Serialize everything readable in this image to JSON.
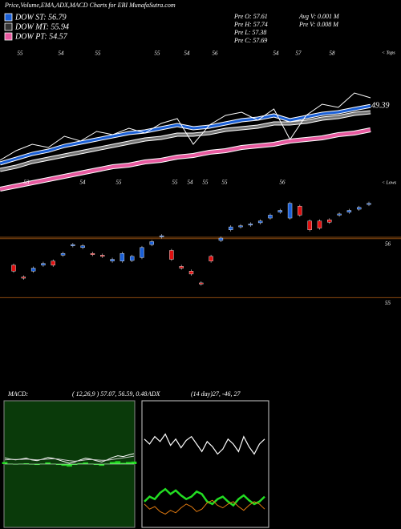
{
  "header": {
    "title": "Price,Volume,EMA,ADX,MACD Charts for EBI MunafaSutra.com"
  },
  "legend": [
    {
      "label": "DOW ST: 56.79",
      "color": "#1a5fd6"
    },
    {
      "label": "DOW MT: 55.94",
      "color": "#333333"
    },
    {
      "label": "DOW PT: 54.57",
      "color": "#e85aa0"
    }
  ],
  "info": [
    "Pre  O: 57.61",
    "Pre  H: 57.74",
    "Pre  L: 57.38",
    "Pre  C: 57.69",
    "Avg  V: 0.001  M",
    "Pre  V: 0.008  M"
  ],
  "chart_data": [
    {
      "type": "line",
      "tops_label": "< Tops",
      "tops": [
        "55",
        "54",
        "55",
        "55",
        "54",
        "56",
        "54",
        "57",
        "58"
      ],
      "lows_label": "< Lows",
      "lows": [
        "53",
        "54",
        "55",
        "55",
        "54",
        "55",
        "55",
        "56"
      ],
      "last_label": "49.39",
      "ylim": [
        44,
        53
      ],
      "series": [
        {
          "color": "#e85aa0",
          "width": 4,
          "values": [
            44.2,
            44.4,
            44.6,
            44.8,
            45.0,
            45.2,
            45.4,
            45.6,
            45.7,
            45.9,
            46.0,
            46.2,
            46.3,
            46.5,
            46.6,
            46.8,
            46.9,
            47.0,
            47.2,
            47.3,
            47.4,
            47.6,
            47.7,
            47.9
          ]
        },
        {
          "color": "#777777",
          "width": 3,
          "values": [
            45.4,
            45.6,
            45.9,
            46.1,
            46.3,
            46.5,
            46.7,
            46.9,
            47.1,
            47.3,
            47.4,
            47.6,
            47.6,
            47.7,
            47.9,
            48.0,
            48.1,
            48.3,
            48.3,
            48.4,
            48.6,
            48.7,
            48.9,
            49.0
          ]
        },
        {
          "color": "#1a5fd6",
          "width": 3,
          "values": [
            45.8,
            46.1,
            46.4,
            46.6,
            46.9,
            47.1,
            47.3,
            47.5,
            47.7,
            47.8,
            48.0,
            48.2,
            48.0,
            48.1,
            48.3,
            48.5,
            48.6,
            48.8,
            48.5,
            48.7,
            48.9,
            49.0,
            49.2,
            49.39
          ]
        },
        {
          "color": "#ffffff",
          "width": 1,
          "values": [
            46.0,
            46.6,
            47.0,
            46.8,
            47.5,
            47.2,
            47.8,
            47.6,
            48.0,
            47.7,
            48.3,
            48.6,
            47.0,
            48.2,
            48.8,
            49.0,
            48.5,
            49.2,
            47.3,
            48.8,
            49.5,
            49.3,
            50.2,
            49.9
          ]
        }
      ]
    },
    {
      "type": "candlestick",
      "up_color": "#1a5fd6",
      "down_color": "#e01010",
      "ylim": [
        54.95,
        56.65
      ],
      "yticks": [
        55,
        56
      ],
      "open": [
        55.55,
        55.35,
        55.45,
        55.55,
        55.62,
        55.72,
        55.88,
        55.85,
        55.75,
        55.72,
        55.62,
        55.62,
        55.63,
        55.68,
        55.9,
        56.03,
        55.8,
        55.53,
        55.45,
        55.25,
        55.7,
        55.97,
        56.15,
        56.2,
        56.23,
        56.27,
        56.35,
        56.45,
        56.35,
        56.55,
        56.3,
        56.3,
        56.32,
        56.4,
        56.45,
        56.5,
        56.58
      ],
      "close": [
        55.45,
        55.33,
        55.5,
        55.58,
        55.55,
        55.75,
        55.9,
        55.88,
        55.73,
        55.7,
        55.65,
        55.75,
        55.7,
        55.85,
        55.95,
        56.05,
        55.65,
        55.5,
        55.4,
        55.23,
        55.62,
        56.01,
        56.2,
        56.22,
        56.25,
        56.3,
        56.4,
        56.48,
        56.6,
        56.4,
        56.15,
        56.18,
        56.28,
        56.42,
        56.48,
        56.53,
        56.6
      ]
    },
    {
      "type": "macd",
      "label": "MACD:",
      "params": "( 12,26,9 ) 57.07, 56.59, 0.48",
      "ylim": [
        -1.5,
        1.5
      ],
      "series": [
        {
          "color": "#ffffff",
          "values": [
            0.15,
            0.12,
            0.1,
            0.12,
            0.14,
            0.1,
            0.08,
            0.12,
            0.16,
            0.14,
            0.1,
            0.06,
            0.02,
            0.05,
            0.1,
            0.14,
            0.12,
            0.08,
            0.05,
            0.1,
            0.16,
            0.2,
            0.18,
            0.22,
            0.25
          ]
        },
        {
          "color": "#cccccc",
          "values": [
            0.1,
            0.11,
            0.11,
            0.11,
            0.12,
            0.11,
            0.1,
            0.11,
            0.12,
            0.13,
            0.12,
            0.1,
            0.08,
            0.07,
            0.08,
            0.1,
            0.11,
            0.1,
            0.09,
            0.09,
            0.11,
            0.13,
            0.15,
            0.17,
            0.19
          ]
        }
      ],
      "histogram": {
        "color": "#22dd22",
        "values": [
          0.05,
          0.01,
          -0.01,
          0.01,
          0.02,
          -0.01,
          -0.02,
          0.01,
          0.04,
          0.01,
          -0.02,
          -0.04,
          -0.06,
          -0.02,
          0.02,
          0.04,
          0.01,
          -0.02,
          -0.04,
          0.01,
          0.05,
          0.07,
          0.03,
          0.05,
          0.06
        ]
      }
    },
    {
      "type": "line",
      "label": "ADX",
      "params": "(14 day)27, -46, 27",
      "ylim": [
        0,
        100
      ],
      "series": [
        {
          "color": "#ffffff",
          "width": 1.2,
          "values": [
            70,
            66,
            72,
            68,
            74,
            65,
            70,
            63,
            69,
            72,
            66,
            60,
            68,
            64,
            58,
            62,
            70,
            66,
            60,
            72,
            64,
            58,
            66,
            70
          ]
        },
        {
          "color": "#22dd22",
          "width": 2.5,
          "values": [
            20,
            24,
            22,
            27,
            30,
            26,
            29,
            25,
            22,
            24,
            28,
            26,
            20,
            18,
            22,
            24,
            20,
            17,
            22,
            25,
            21,
            18,
            20,
            24
          ]
        },
        {
          "color": "#e07a10",
          "width": 1,
          "values": [
            18,
            14,
            16,
            12,
            10,
            13,
            11,
            15,
            18,
            16,
            12,
            14,
            19,
            21,
            17,
            15,
            18,
            20,
            16,
            13,
            17,
            20,
            18,
            14
          ]
        }
      ]
    }
  ]
}
